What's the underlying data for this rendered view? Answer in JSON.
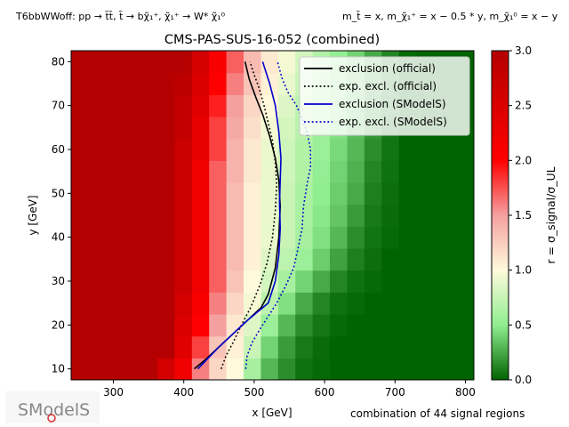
{
  "header": {
    "topology": "T6bbWWoff: pp → t̃t̃, t̃ → bχ̃₁⁺, χ̃₁⁺ → W* χ̃₁⁰",
    "mass_relation": "m_t̃ = x, m_χ̃₁⁺ = x − 0.5 * y, m_χ̃₁⁰ = x − y"
  },
  "footer": {
    "combination": "combination of 44 signal regions"
  },
  "logo": {
    "text": "SModelS"
  },
  "chart_data": {
    "type": "heatmap",
    "title": "CMS-PAS-SUS-16-052 (combined)",
    "xlabel": "x [GeV]",
    "ylabel": "y [GeV]",
    "colorbar_label": "r = σ_signal/σ_UL",
    "xlim": [
      240,
      812
    ],
    "ylim": [
      7.5,
      82.5
    ],
    "zlim": [
      0,
      3
    ],
    "x_ticks": [
      300,
      400,
      500,
      600,
      700,
      800
    ],
    "y_ticks": [
      10,
      20,
      30,
      40,
      50,
      60,
      70,
      80
    ],
    "colorbar_ticks": [
      0.0,
      0.5,
      1.0,
      1.5,
      2.0,
      2.5,
      3.0
    ],
    "colormap": [
      {
        "r": 0.0,
        "color": "#006400"
      },
      {
        "r": 0.5,
        "color": "#90ee90"
      },
      {
        "r": 1.0,
        "color": "#fffadc"
      },
      {
        "r": 1.5,
        "color": "#f4a0a0"
      },
      {
        "r": 2.0,
        "color": "#ff0000"
      },
      {
        "r": 3.0,
        "color": "#b40000"
      }
    ],
    "grid": {
      "x_start": 240,
      "x_step": 24.5,
      "x_count": 24,
      "y_start": 7.5,
      "y_step": 5,
      "y_count": 15,
      "rows_bottom_to_top": [
        [
          3,
          3,
          3,
          3,
          3,
          2.6,
          2.2,
          1.6,
          1.2,
          1.0,
          0.6,
          0.3,
          0.15,
          0.05,
          0.02,
          0,
          0,
          0,
          0,
          0,
          0,
          0,
          0,
          0
        ],
        [
          3,
          3,
          3,
          3,
          3,
          3,
          2.4,
          1.8,
          1.3,
          1.05,
          0.75,
          0.4,
          0.2,
          0.08,
          0.03,
          0,
          0,
          0,
          0,
          0,
          0,
          0,
          0,
          0
        ],
        [
          3,
          3,
          3,
          3,
          3,
          3,
          2.5,
          2.0,
          1.5,
          1.1,
          0.85,
          0.55,
          0.3,
          0.15,
          0.07,
          0.02,
          0,
          0,
          0,
          0,
          0,
          0,
          0,
          0
        ],
        [
          3,
          3,
          3,
          3,
          3,
          3,
          2.6,
          2.1,
          1.6,
          1.2,
          0.95,
          0.7,
          0.45,
          0.25,
          0.12,
          0.05,
          0.02,
          0,
          0,
          0,
          0,
          0,
          0,
          0
        ],
        [
          3,
          3,
          3,
          3,
          3,
          3,
          2.7,
          2.2,
          1.7,
          1.3,
          1.0,
          0.8,
          0.6,
          0.4,
          0.25,
          0.12,
          0.05,
          0.02,
          0,
          0,
          0,
          0,
          0,
          0
        ],
        [
          3,
          3,
          3,
          3,
          3,
          3,
          2.7,
          2.2,
          1.7,
          1.35,
          1.05,
          0.85,
          0.7,
          0.55,
          0.38,
          0.22,
          0.1,
          0.04,
          0,
          0,
          0,
          0,
          0,
          0
        ],
        [
          3,
          3,
          3,
          3,
          3,
          3,
          2.7,
          2.2,
          1.7,
          1.35,
          1.05,
          0.9,
          0.75,
          0.6,
          0.45,
          0.3,
          0.15,
          0.06,
          0.02,
          0,
          0,
          0,
          0,
          0
        ],
        [
          3,
          3,
          3,
          3,
          3,
          3,
          2.7,
          2.2,
          1.7,
          1.35,
          1.05,
          0.9,
          0.75,
          0.62,
          0.48,
          0.35,
          0.2,
          0.08,
          0.03,
          0,
          0,
          0,
          0,
          0
        ],
        [
          3,
          3,
          3,
          3,
          3,
          3,
          2.7,
          2.2,
          1.7,
          1.35,
          1.05,
          0.9,
          0.75,
          0.62,
          0.5,
          0.38,
          0.25,
          0.1,
          0.04,
          0,
          0,
          0,
          0,
          0
        ],
        [
          3,
          3,
          3,
          3,
          3,
          3,
          2.7,
          2.2,
          1.7,
          1.4,
          1.1,
          0.9,
          0.78,
          0.65,
          0.52,
          0.4,
          0.28,
          0.12,
          0.05,
          0,
          0,
          0,
          0,
          0
        ],
        [
          3,
          3,
          3,
          3,
          3,
          3,
          2.7,
          2.3,
          1.8,
          1.4,
          1.1,
          0.9,
          0.78,
          0.65,
          0.55,
          0.42,
          0.3,
          0.15,
          0.06,
          0,
          0,
          0,
          0,
          0
        ],
        [
          3,
          3,
          3,
          3,
          3,
          3,
          2.8,
          2.3,
          1.8,
          1.45,
          1.15,
          0.95,
          0.8,
          0.68,
          0.55,
          0.45,
          0.32,
          0.18,
          0.07,
          0,
          0,
          0,
          0,
          0
        ],
        [
          3,
          3,
          3,
          3,
          3,
          3,
          2.8,
          2.4,
          1.9,
          1.5,
          1.2,
          1.0,
          0.85,
          0.7,
          0.58,
          0.48,
          0.35,
          0.2,
          0.08,
          0,
          0,
          0,
          0,
          0
        ],
        [
          3,
          3,
          3,
          3,
          3,
          3,
          2.9,
          2.5,
          2.0,
          1.6,
          1.3,
          1.05,
          0.9,
          0.75,
          0.62,
          0.5,
          0.38,
          0.22,
          0.1,
          0,
          0,
          0,
          0,
          0
        ],
        [
          3,
          3,
          3,
          3,
          3,
          3,
          3,
          2.6,
          2.1,
          1.7,
          1.35,
          1.1,
          0.95,
          0.8,
          0.65,
          0.52,
          0.4,
          0.25,
          0.12,
          0.02,
          0,
          0,
          0,
          0
        ]
      ]
    },
    "series": [
      {
        "name": "exclusion (official)",
        "color": "#000000",
        "style": "solid",
        "x": [
          415,
          430,
          450,
          470,
          490,
          510,
          520,
          530,
          535,
          537,
          535,
          530,
          522,
          512,
          502,
          493,
          487
        ],
        "y": [
          10,
          12,
          15,
          18,
          21,
          24,
          27,
          33,
          40,
          47,
          53,
          58,
          63,
          68,
          72,
          76,
          80
        ]
      },
      {
        "name": "exp. excl. (official)",
        "color": "#000000",
        "style": "dotted",
        "x": [
          453,
          460,
          470,
          482,
          495,
          508,
          518,
          526,
          530,
          532,
          530,
          526,
          520,
          514,
          507,
          500,
          494
        ],
        "y": [
          10,
          13,
          16,
          20,
          24,
          29,
          34,
          40,
          46,
          52,
          57,
          62,
          66,
          70,
          74,
          77,
          80
        ]
      },
      {
        "name": "exclusion (SModelS)",
        "color": "#0000cc",
        "style": "solid",
        "x": [
          420,
          435,
          450,
          470,
          490,
          505,
          520,
          530,
          535,
          537,
          536,
          537,
          538,
          535,
          530,
          522,
          512
        ],
        "y": [
          10,
          12.5,
          15,
          18,
          21,
          23,
          25,
          30,
          36,
          42,
          48,
          53,
          58,
          64,
          70,
          75,
          80
        ]
      },
      {
        "name": "exp. excl. (SModelS)",
        "color": "#0000cc",
        "style": "dotted",
        "x": [
          488,
          490,
          497,
          508,
          520,
          532,
          545,
          556,
          563,
          568,
          570,
          575,
          580,
          580,
          575,
          568,
          560,
          548,
          540,
          533
        ],
        "y": [
          10,
          13,
          16,
          19,
          22,
          25,
          29,
          33,
          38,
          42,
          47,
          52,
          56,
          60,
          64,
          67,
          70,
          73,
          76,
          80
        ]
      }
    ],
    "legend_placement": "top-right"
  }
}
